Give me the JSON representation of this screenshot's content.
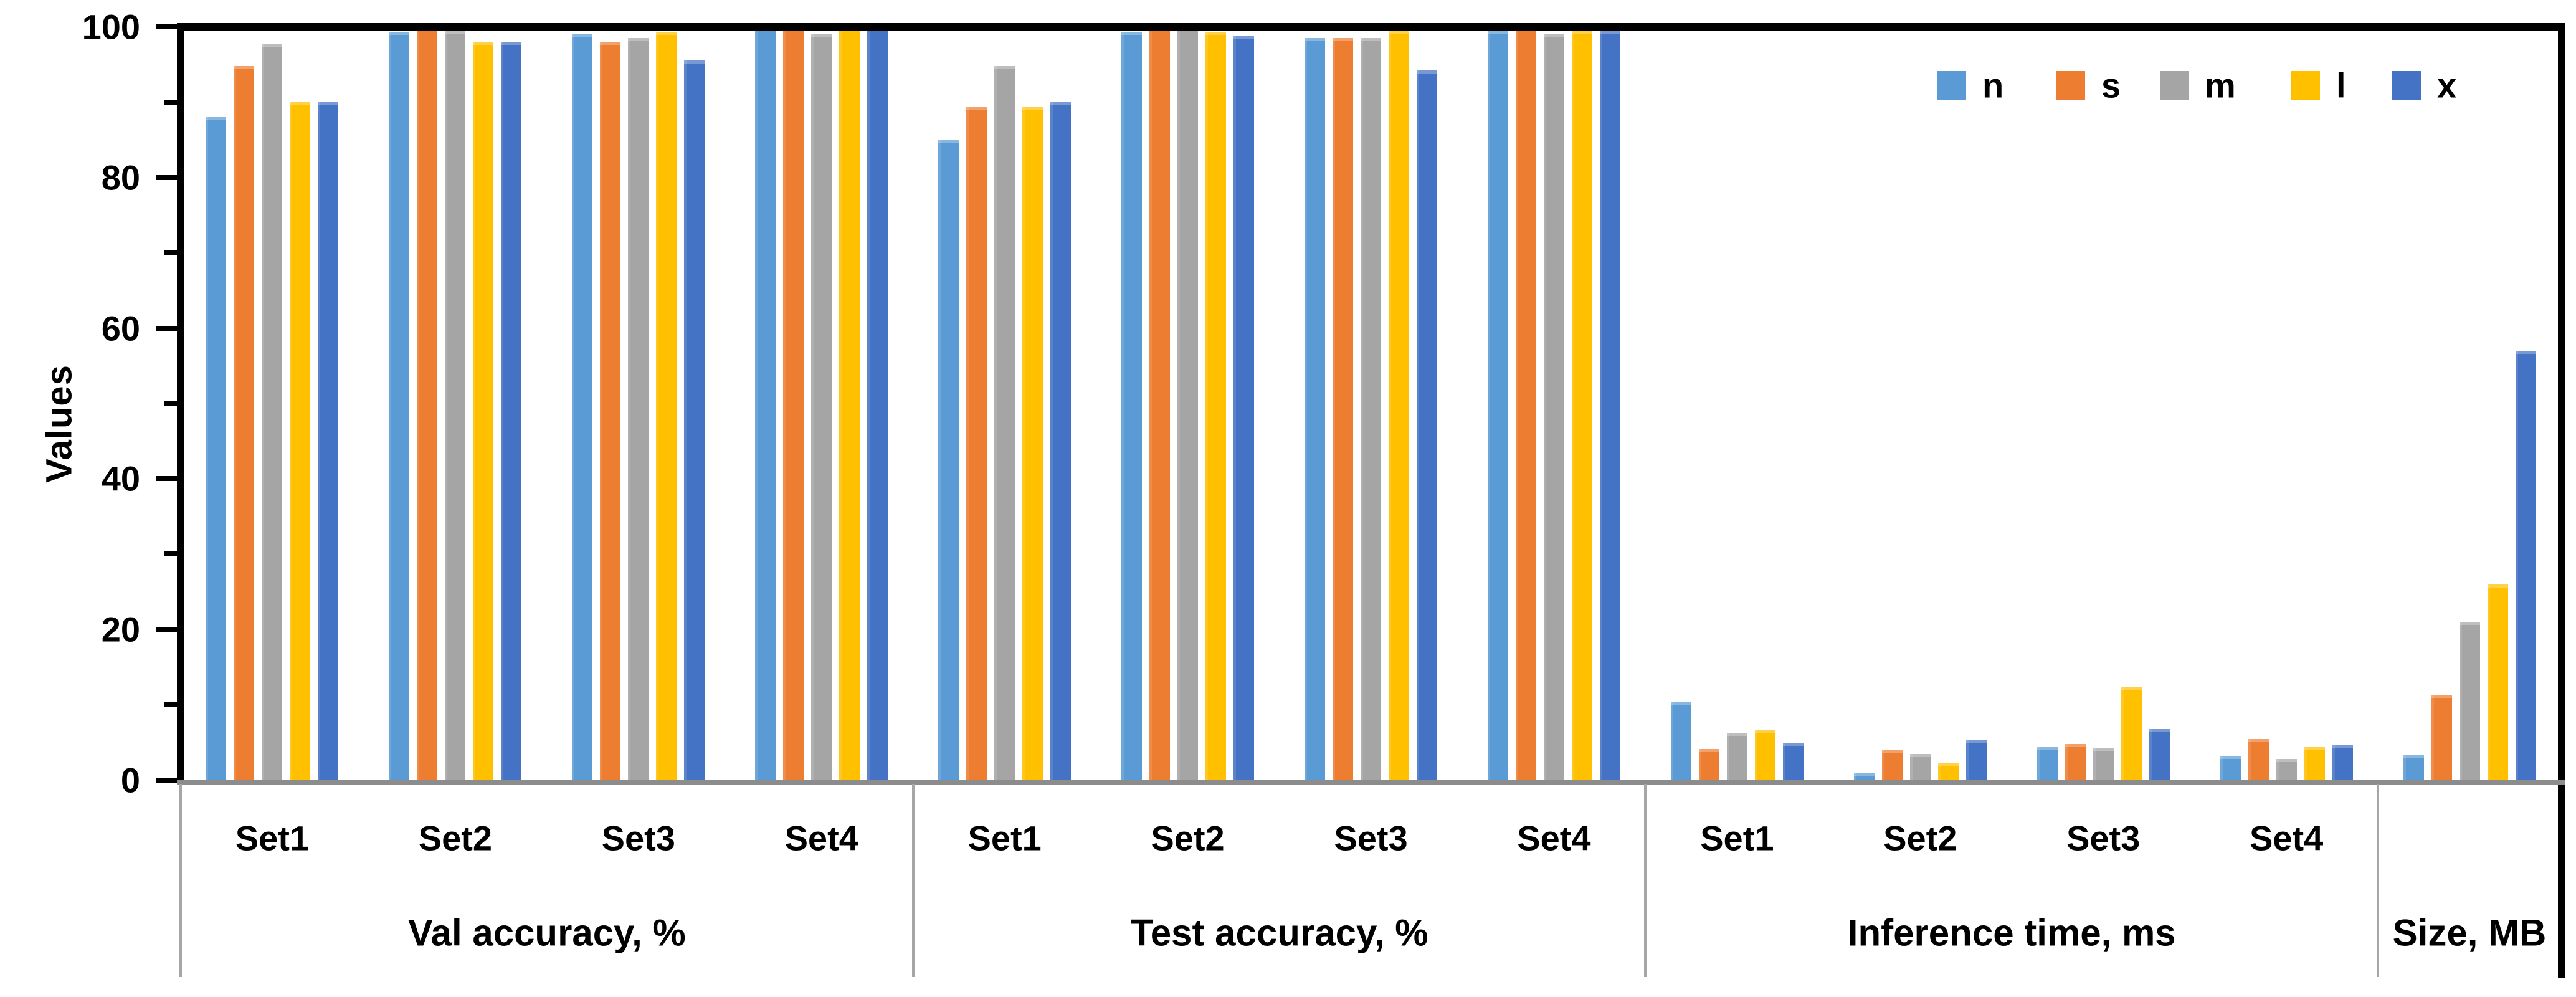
{
  "chart_data": {
    "type": "bar",
    "title": "",
    "xlabel": "",
    "ylabel": "Values",
    "ylim": [
      0,
      100
    ],
    "yticks": [
      0,
      20,
      40,
      60,
      80,
      100
    ],
    "minor_tick_step": 10,
    "grid": false,
    "legend_position": "top-right",
    "panels": [
      {
        "label": "Val accuracy, %",
        "sets": [
          "Set1",
          "Set2",
          "Set3",
          "Set4"
        ]
      },
      {
        "label": "Test accuracy, %",
        "sets": [
          "Set1",
          "Set2",
          "Set3",
          "Set4"
        ]
      },
      {
        "label": "Inference time, ms",
        "sets": [
          "Set1",
          "Set2",
          "Set3",
          "Set4"
        ]
      },
      {
        "label": "Size, MB",
        "sets": [
          ""
        ]
      }
    ],
    "series": [
      {
        "name": "n",
        "color": "#5B9BD5",
        "values": [
          88,
          99.3,
          99,
          100,
          85,
          99.3,
          98.5,
          99.4,
          10.4,
          1.0,
          4.5,
          3.2,
          3.3
        ]
      },
      {
        "name": "s",
        "color": "#ED7D31",
        "values": [
          94.8,
          100,
          98,
          100,
          89.3,
          100,
          98.5,
          100,
          4.1,
          4.0,
          4.8,
          5.5,
          11.3
        ]
      },
      {
        "name": "m",
        "color": "#A5A5A5",
        "values": [
          97.7,
          99.4,
          98.5,
          99,
          94.8,
          100,
          98.5,
          99,
          6.3,
          3.5,
          4.2,
          2.8,
          21
        ]
      },
      {
        "name": "l",
        "color": "#FFC000",
        "values": [
          90,
          98,
          99.3,
          100,
          89.3,
          99.3,
          99.4,
          99.4,
          6.7,
          2.3,
          12.3,
          4.5,
          26
        ]
      },
      {
        "name": "x",
        "color": "#4472C4",
        "values": [
          90,
          98,
          95.5,
          100,
          90,
          98.8,
          94.2,
          99.4,
          5.0,
          5.4,
          6.8,
          4.7,
          57
        ]
      }
    ]
  }
}
